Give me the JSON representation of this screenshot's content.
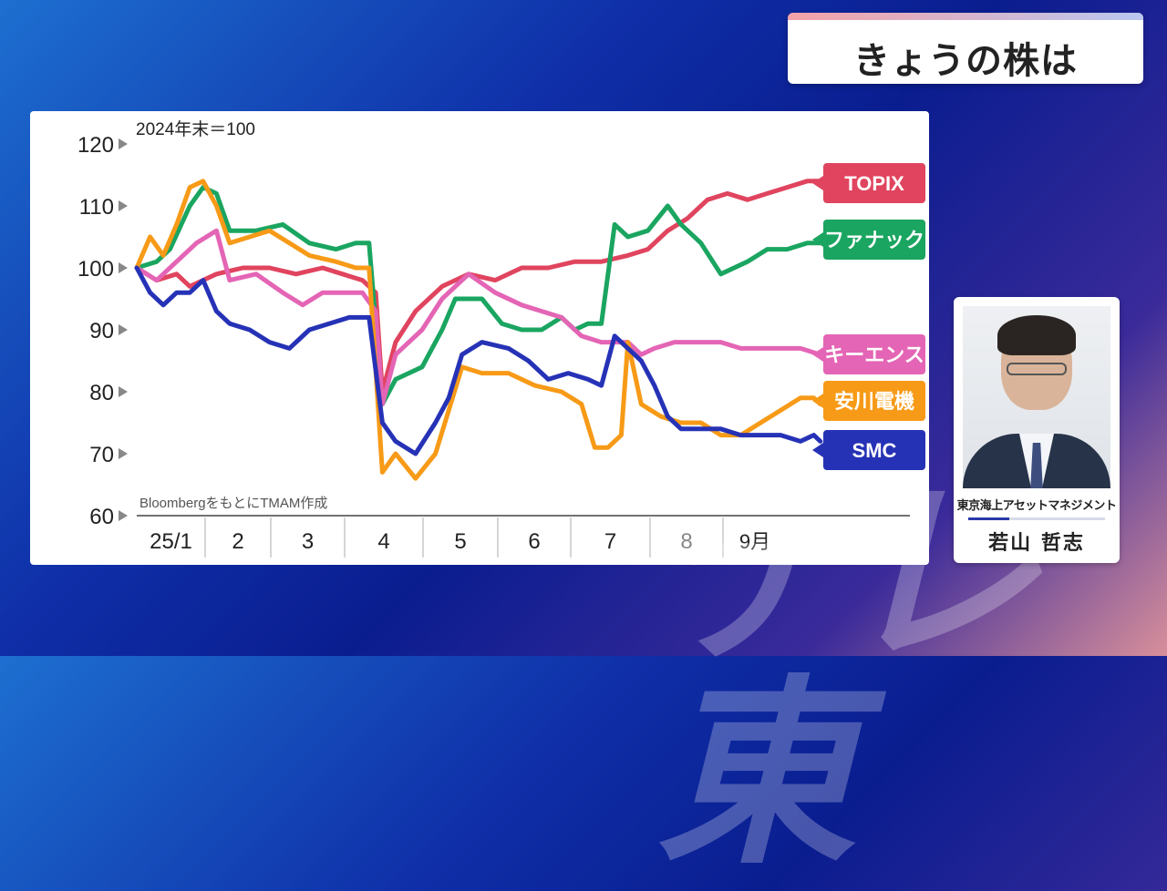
{
  "header": {
    "title": "きょうの株は"
  },
  "watermark": "テレ東",
  "person": {
    "organization": "東京海上アセットマネジメント",
    "name": "若山 哲志"
  },
  "chart_data": {
    "type": "line",
    "note": "2024年末＝100",
    "source": "BloombergをもとにTMAM作成",
    "ylim": [
      60,
      120
    ],
    "y_ticks": [
      "60",
      "70",
      "80",
      "90",
      "100",
      "110",
      "120"
    ],
    "month_labels": [
      "25/1",
      "2",
      "3",
      "4",
      "5",
      "6",
      "7",
      "8",
      "9月"
    ],
    "x_unit": "index (0 = 2024年末, 100 = 9月下旬)",
    "legend_position": "right",
    "series": [
      {
        "name": "TOPIX",
        "color": "#e0445e",
        "points": [
          [
            0,
            100
          ],
          [
            3,
            98
          ],
          [
            6,
            99
          ],
          [
            8,
            97
          ],
          [
            12,
            99
          ],
          [
            16,
            100
          ],
          [
            20,
            100
          ],
          [
            24,
            99
          ],
          [
            28,
            100
          ],
          [
            31,
            99
          ],
          [
            34,
            98
          ],
          [
            36,
            96
          ],
          [
            37,
            80
          ],
          [
            39,
            88
          ],
          [
            42,
            93
          ],
          [
            46,
            97
          ],
          [
            50,
            99
          ],
          [
            54,
            98
          ],
          [
            58,
            100
          ],
          [
            62,
            100
          ],
          [
            66,
            101
          ],
          [
            70,
            101
          ],
          [
            74,
            102
          ],
          [
            77,
            103
          ],
          [
            80,
            106
          ],
          [
            83,
            108
          ],
          [
            86,
            111
          ],
          [
            89,
            112
          ],
          [
            92,
            111
          ],
          [
            95,
            112
          ],
          [
            98,
            113
          ],
          [
            101,
            114
          ],
          [
            103,
            114
          ],
          [
            105,
            113
          ]
        ]
      },
      {
        "name": "ファナック",
        "color": "#1aa560",
        "points": [
          [
            0,
            100
          ],
          [
            3,
            101
          ],
          [
            5,
            103
          ],
          [
            8,
            110
          ],
          [
            10,
            113
          ],
          [
            12,
            112
          ],
          [
            14,
            106
          ],
          [
            18,
            106
          ],
          [
            22,
            107
          ],
          [
            26,
            104
          ],
          [
            30,
            103
          ],
          [
            33,
            104
          ],
          [
            35,
            104
          ],
          [
            37,
            78
          ],
          [
            39,
            82
          ],
          [
            43,
            84
          ],
          [
            46,
            90
          ],
          [
            48,
            95
          ],
          [
            52,
            95
          ],
          [
            55,
            91
          ],
          [
            58,
            90
          ],
          [
            61,
            90
          ],
          [
            64,
            92
          ],
          [
            66,
            90
          ],
          [
            68,
            91
          ],
          [
            70,
            91
          ],
          [
            72,
            107
          ],
          [
            74,
            105
          ],
          [
            77,
            106
          ],
          [
            80,
            110
          ],
          [
            82,
            107
          ],
          [
            85,
            104
          ],
          [
            88,
            99
          ],
          [
            92,
            101
          ],
          [
            95,
            103
          ],
          [
            98,
            103
          ],
          [
            101,
            104
          ],
          [
            103,
            104
          ]
        ]
      },
      {
        "name": "キーエンス",
        "color": "#e465b5",
        "points": [
          [
            0,
            100
          ],
          [
            3,
            98
          ],
          [
            6,
            101
          ],
          [
            9,
            104
          ],
          [
            12,
            106
          ],
          [
            14,
            98
          ],
          [
            18,
            99
          ],
          [
            22,
            96
          ],
          [
            25,
            94
          ],
          [
            28,
            96
          ],
          [
            31,
            96
          ],
          [
            34,
            96
          ],
          [
            36,
            93
          ],
          [
            37,
            78
          ],
          [
            39,
            86
          ],
          [
            43,
            90
          ],
          [
            46,
            95
          ],
          [
            50,
            99
          ],
          [
            54,
            96
          ],
          [
            58,
            94
          ],
          [
            61,
            93
          ],
          [
            64,
            92
          ],
          [
            67,
            89
          ],
          [
            70,
            88
          ],
          [
            72,
            88
          ],
          [
            74,
            88
          ],
          [
            76,
            86
          ],
          [
            78,
            87
          ],
          [
            81,
            88
          ],
          [
            85,
            88
          ],
          [
            88,
            88
          ],
          [
            91,
            87
          ],
          [
            94,
            87
          ],
          [
            97,
            87
          ],
          [
            100,
            87
          ],
          [
            103,
            86
          ]
        ]
      },
      {
        "name": "安川電機",
        "color": "#f79a17",
        "points": [
          [
            0,
            100
          ],
          [
            2,
            105
          ],
          [
            4,
            102
          ],
          [
            6,
            107
          ],
          [
            8,
            113
          ],
          [
            10,
            114
          ],
          [
            12,
            110
          ],
          [
            14,
            104
          ],
          [
            17,
            105
          ],
          [
            20,
            106
          ],
          [
            23,
            104
          ],
          [
            26,
            102
          ],
          [
            30,
            101
          ],
          [
            33,
            100
          ],
          [
            35,
            100
          ],
          [
            37,
            67
          ],
          [
            39,
            70
          ],
          [
            42,
            66
          ],
          [
            45,
            70
          ],
          [
            47,
            77
          ],
          [
            49,
            84
          ],
          [
            52,
            83
          ],
          [
            56,
            83
          ],
          [
            60,
            81
          ],
          [
            64,
            80
          ],
          [
            67,
            78
          ],
          [
            69,
            71
          ],
          [
            71,
            71
          ],
          [
            73,
            73
          ],
          [
            74,
            88
          ],
          [
            76,
            78
          ],
          [
            79,
            76
          ],
          [
            82,
            75
          ],
          [
            85,
            75
          ],
          [
            88,
            73
          ],
          [
            91,
            73
          ],
          [
            94,
            75
          ],
          [
            97,
            77
          ],
          [
            100,
            79
          ],
          [
            102,
            79
          ],
          [
            103,
            78
          ]
        ]
      },
      {
        "name": "SMC",
        "color": "#2632b6",
        "points": [
          [
            0,
            100
          ],
          [
            2,
            96
          ],
          [
            4,
            94
          ],
          [
            6,
            96
          ],
          [
            8,
            96
          ],
          [
            10,
            98
          ],
          [
            12,
            93
          ],
          [
            14,
            91
          ],
          [
            17,
            90
          ],
          [
            20,
            88
          ],
          [
            23,
            87
          ],
          [
            26,
            90
          ],
          [
            29,
            91
          ],
          [
            32,
            92
          ],
          [
            35,
            92
          ],
          [
            37,
            75
          ],
          [
            39,
            72
          ],
          [
            42,
            70
          ],
          [
            45,
            75
          ],
          [
            47,
            79
          ],
          [
            49,
            86
          ],
          [
            52,
            88
          ],
          [
            56,
            87
          ],
          [
            59,
            85
          ],
          [
            62,
            82
          ],
          [
            65,
            83
          ],
          [
            68,
            82
          ],
          [
            70,
            81
          ],
          [
            72,
            89
          ],
          [
            74,
            87
          ],
          [
            76,
            85
          ],
          [
            78,
            81
          ],
          [
            80,
            76
          ],
          [
            82,
            74
          ],
          [
            85,
            74
          ],
          [
            88,
            74
          ],
          [
            91,
            73
          ],
          [
            94,
            73
          ],
          [
            97,
            73
          ],
          [
            100,
            72
          ],
          [
            102,
            73
          ],
          [
            103,
            72
          ]
        ]
      }
    ]
  }
}
